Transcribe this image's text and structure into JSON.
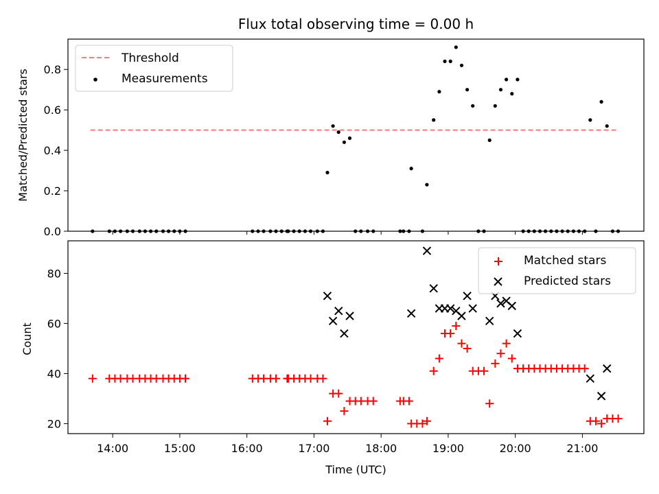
{
  "chart_data": [
    {
      "type": "scatter",
      "title": "Flux total observing time = 0.00 h",
      "xlabel": "",
      "ylabel": "Matched/Predicted stars",
      "xlim": [
        "13:20",
        "21:55"
      ],
      "ylim": [
        0,
        0.95
      ],
      "yticks": [
        0.0,
        0.2,
        0.4,
        0.6,
        0.8
      ],
      "ytick_labels": [
        "0.0",
        "0.2",
        "0.4",
        "0.6",
        "0.8"
      ],
      "grid": false,
      "legend": {
        "placement": "upper-left",
        "entries": [
          "Threshold",
          "Measurements"
        ]
      },
      "threshold": {
        "name": "Threshold",
        "y": 0.5,
        "x_range": [
          "13:40",
          "21:30"
        ],
        "color": "#ff7777",
        "style": "dashed"
      },
      "series": [
        {
          "name": "Measurements",
          "color": "#000000",
          "marker": "dot",
          "points": [
            [
              "13:42",
              0
            ],
            [
              "13:57",
              0
            ],
            [
              "14:02",
              0
            ],
            [
              "14:07",
              0
            ],
            [
              "14:13",
              0
            ],
            [
              "14:18",
              0
            ],
            [
              "14:24",
              0
            ],
            [
              "14:29",
              0
            ],
            [
              "14:34",
              0
            ],
            [
              "14:39",
              0
            ],
            [
              "14:45",
              0
            ],
            [
              "14:50",
              0
            ],
            [
              "14:55",
              0
            ],
            [
              "15:00",
              0
            ],
            [
              "15:05",
              0
            ],
            [
              "16:05",
              0
            ],
            [
              "16:10",
              0
            ],
            [
              "16:15",
              0
            ],
            [
              "16:21",
              0
            ],
            [
              "16:26",
              0
            ],
            [
              "16:31",
              0
            ],
            [
              "16:36",
              0
            ],
            [
              "16:37",
              0
            ],
            [
              "16:42",
              0
            ],
            [
              "16:47",
              0
            ],
            [
              "16:52",
              0
            ],
            [
              "16:57",
              0
            ],
            [
              "17:03",
              0
            ],
            [
              "17:08",
              0
            ],
            [
              "17:12",
              0.29
            ],
            [
              "17:17",
              0.52
            ],
            [
              "17:22",
              0.49
            ],
            [
              "17:27",
              0.44
            ],
            [
              "17:32",
              0.46
            ],
            [
              "17:37",
              0
            ],
            [
              "17:42",
              0
            ],
            [
              "17:48",
              0
            ],
            [
              "17:53",
              0
            ],
            [
              "18:17",
              0
            ],
            [
              "18:20",
              0
            ],
            [
              "18:25",
              0
            ],
            [
              "18:27",
              0.31
            ],
            [
              "18:37",
              0
            ],
            [
              "18:41",
              0.23
            ],
            [
              "18:47",
              0.55
            ],
            [
              "18:52",
              0.69
            ],
            [
              "18:57",
              0.84
            ],
            [
              "19:02",
              0.84
            ],
            [
              "19:07",
              0.91
            ],
            [
              "19:12",
              0.82
            ],
            [
              "19:17",
              0.7
            ],
            [
              "19:22",
              0.62
            ],
            [
              "19:27",
              0
            ],
            [
              "19:32",
              0
            ],
            [
              "19:37",
              0.45
            ],
            [
              "19:42",
              0.62
            ],
            [
              "19:47",
              0.7
            ],
            [
              "19:52",
              0.75
            ],
            [
              "19:57",
              0.68
            ],
            [
              "20:02",
              0.75
            ],
            [
              "20:07",
              0
            ],
            [
              "20:12",
              0
            ],
            [
              "20:17",
              0
            ],
            [
              "20:22",
              0
            ],
            [
              "20:27",
              0
            ],
            [
              "20:32",
              0
            ],
            [
              "20:37",
              0
            ],
            [
              "20:42",
              0
            ],
            [
              "20:47",
              0
            ],
            [
              "20:52",
              0
            ],
            [
              "20:57",
              0
            ],
            [
              "21:02",
              0
            ],
            [
              "21:07",
              0.55
            ],
            [
              "21:12",
              0
            ],
            [
              "21:17",
              0.64
            ],
            [
              "21:22",
              0.52
            ],
            [
              "21:27",
              0
            ],
            [
              "21:32",
              0
            ]
          ]
        }
      ]
    },
    {
      "type": "scatter",
      "title": "",
      "xlabel": "Time (UTC)",
      "ylabel": "Count",
      "xlim": [
        "13:20",
        "21:55"
      ],
      "ylim": [
        16,
        93
      ],
      "yticks": [
        20,
        40,
        60,
        80
      ],
      "ytick_labels": [
        "20",
        "40",
        "60",
        "80"
      ],
      "xticks": [
        "14:00",
        "15:00",
        "16:00",
        "17:00",
        "18:00",
        "19:00",
        "20:00",
        "21:00"
      ],
      "xtick_labels": [
        "14:00",
        "15:00",
        "16:00",
        "17:00",
        "18:00",
        "19:00",
        "20:00",
        "21:00"
      ],
      "grid": false,
      "legend": {
        "placement": "upper-right",
        "entries": [
          "Matched stars",
          "Predicted stars"
        ]
      },
      "series": [
        {
          "name": "Matched stars",
          "color": "#ff0000",
          "marker": "plus",
          "points": [
            [
              "13:42",
              38
            ],
            [
              "13:57",
              38
            ],
            [
              "14:02",
              38
            ],
            [
              "14:07",
              38
            ],
            [
              "14:13",
              38
            ],
            [
              "14:18",
              38
            ],
            [
              "14:24",
              38
            ],
            [
              "14:29",
              38
            ],
            [
              "14:34",
              38
            ],
            [
              "14:39",
              38
            ],
            [
              "14:45",
              38
            ],
            [
              "14:50",
              38
            ],
            [
              "14:55",
              38
            ],
            [
              "15:00",
              38
            ],
            [
              "15:05",
              38
            ],
            [
              "16:05",
              38
            ],
            [
              "16:10",
              38
            ],
            [
              "16:15",
              38
            ],
            [
              "16:21",
              38
            ],
            [
              "16:26",
              38
            ],
            [
              "16:36",
              38
            ],
            [
              "16:37",
              38
            ],
            [
              "16:42",
              38
            ],
            [
              "16:47",
              38
            ],
            [
              "16:52",
              38
            ],
            [
              "16:57",
              38
            ],
            [
              "17:03",
              38
            ],
            [
              "17:08",
              38
            ],
            [
              "17:12",
              21
            ],
            [
              "17:17",
              32
            ],
            [
              "17:22",
              32
            ],
            [
              "17:27",
              25
            ],
            [
              "17:32",
              29
            ],
            [
              "17:37",
              29
            ],
            [
              "17:42",
              29
            ],
            [
              "17:48",
              29
            ],
            [
              "17:53",
              29
            ],
            [
              "18:17",
              29
            ],
            [
              "18:20",
              29
            ],
            [
              "18:25",
              29
            ],
            [
              "18:27",
              20
            ],
            [
              "18:32",
              20
            ],
            [
              "18:37",
              20
            ],
            [
              "18:41",
              21
            ],
            [
              "18:47",
              41
            ],
            [
              "18:52",
              46
            ],
            [
              "18:57",
              56
            ],
            [
              "19:02",
              56
            ],
            [
              "19:07",
              59
            ],
            [
              "19:12",
              52
            ],
            [
              "19:17",
              50
            ],
            [
              "19:22",
              41
            ],
            [
              "19:27",
              41
            ],
            [
              "19:32",
              41
            ],
            [
              "19:37",
              28
            ],
            [
              "19:42",
              44
            ],
            [
              "19:47",
              48
            ],
            [
              "19:52",
              52
            ],
            [
              "19:57",
              46
            ],
            [
              "20:02",
              42
            ],
            [
              "20:07",
              42
            ],
            [
              "20:12",
              42
            ],
            [
              "20:17",
              42
            ],
            [
              "20:22",
              42
            ],
            [
              "20:27",
              42
            ],
            [
              "20:32",
              42
            ],
            [
              "20:37",
              42
            ],
            [
              "20:42",
              42
            ],
            [
              "20:47",
              42
            ],
            [
              "20:52",
              42
            ],
            [
              "20:57",
              42
            ],
            [
              "21:02",
              42
            ],
            [
              "21:07",
              21
            ],
            [
              "21:12",
              21
            ],
            [
              "21:17",
              20
            ],
            [
              "21:22",
              22
            ],
            [
              "21:27",
              22
            ],
            [
              "21:32",
              22
            ]
          ]
        },
        {
          "name": "Predicted stars",
          "color": "#000000",
          "marker": "x",
          "points": [
            [
              "17:12",
              71
            ],
            [
              "17:17",
              61
            ],
            [
              "17:22",
              65
            ],
            [
              "17:27",
              56
            ],
            [
              "17:32",
              63
            ],
            [
              "18:27",
              64
            ],
            [
              "18:41",
              89
            ],
            [
              "18:47",
              74
            ],
            [
              "18:52",
              66
            ],
            [
              "18:57",
              66
            ],
            [
              "19:02",
              66
            ],
            [
              "19:07",
              65
            ],
            [
              "19:12",
              63
            ],
            [
              "19:17",
              71
            ],
            [
              "19:22",
              66
            ],
            [
              "19:37",
              61
            ],
            [
              "19:42",
              71
            ],
            [
              "19:47",
              68
            ],
            [
              "19:52",
              69
            ],
            [
              "19:57",
              67
            ],
            [
              "20:02",
              56
            ],
            [
              "21:07",
              38
            ],
            [
              "21:17",
              31
            ],
            [
              "21:22",
              42
            ]
          ]
        }
      ]
    }
  ]
}
